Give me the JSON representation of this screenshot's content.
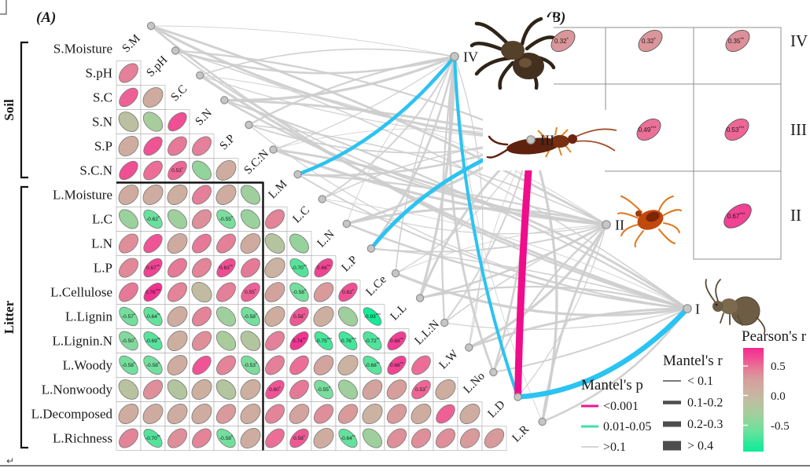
{
  "document": {
    "paragraph_mark": "↵"
  },
  "panelA_label": "(A)",
  "panelB_label": "(B)",
  "chart_data": {
    "type": "correlation-matrix-mantel-network",
    "matrix": {
      "row_labels": [
        "S.Moisture",
        "S.pH",
        "S.C",
        "S.N",
        "S.P",
        "S.C.N",
        "L.Moisture",
        "L.C",
        "L.N",
        "L.P",
        "L.Cellulose",
        "L.Lignin",
        "L.Lignin.N",
        "L.Woody",
        "L.Nonwoody",
        "L.Decomposed",
        "L.Richness"
      ],
      "diag_labels": [
        "S.M",
        "S.pH",
        "S.C",
        "S.N",
        "S.P",
        "S.C:N",
        "L.M",
        "L.C",
        "L.N",
        "L.P",
        "L.Ce",
        "L.L",
        "L.L:N",
        "L.W",
        "L.No",
        "L.D",
        "L.R"
      ],
      "group_brackets": [
        {
          "label": "Soil",
          "first_row": 0,
          "last_row": 5
        },
        {
          "label": "Litter",
          "first_row": 6,
          "last_row": 16
        }
      ],
      "values": [
        [],
        [
          0.42
        ],
        [
          0.55,
          0.12
        ],
        [
          -0.12,
          -0.3,
          0.62
        ],
        [
          0.1,
          0.6,
          0.45,
          0.42
        ],
        [
          0.62,
          0.5,
          0.53,
          -0.42,
          0.1
        ],
        [
          0.12,
          0.1,
          0.08,
          0.42,
          0.1,
          -0.35
        ],
        [
          -0.38,
          -0.62,
          -0.35,
          0.35,
          -0.55,
          -0.38,
          0.4
        ],
        [
          0.35,
          0.6,
          0.12,
          0.45,
          0.42,
          0.12,
          -0.18,
          -0.4
        ],
        [
          0.38,
          0.67,
          0.45,
          0.4,
          0.63,
          0.45,
          0.05,
          -0.7,
          0.66
        ],
        [
          0.45,
          0.76,
          0.4,
          -0.05,
          0.42,
          0.55,
          0.22,
          -0.58,
          0.3,
          0.62
        ],
        [
          -0.57,
          -0.64,
          0.1,
          0.4,
          -0.35,
          -0.58,
          0.1,
          0.58,
          0.08,
          -0.35,
          -0.93
        ],
        [
          -0.5,
          -0.69,
          0.08,
          0.35,
          -0.3,
          -0.2,
          0.42,
          0.74,
          -0.75,
          -0.76,
          -0.72,
          0.68
        ],
        [
          -0.58,
          -0.58,
          0.1,
          0.6,
          0.4,
          -0.53,
          0.42,
          0.5,
          0.2,
          0.05,
          -0.68,
          0.66,
          0.5
        ],
        [
          -0.15,
          0.35,
          -0.2,
          0.08,
          -0.2,
          0.08,
          0.6,
          0.45,
          -0.55,
          -0.35,
          0.2,
          0.25,
          0.53,
          0.1
        ],
        [
          0.1,
          0.12,
          0.1,
          0.1,
          0.3,
          0.1,
          0.4,
          0.2,
          0.35,
          0.3,
          0.05,
          0.3,
          0.1,
          0.55,
          0.1
        ],
        [
          0.4,
          -0.7,
          0.35,
          0.4,
          -0.58,
          0.1,
          0.5,
          0.58,
          0.1,
          -0.64,
          -0.35,
          0.35,
          0.35,
          0.35,
          0.3,
          0.3
        ]
      ],
      "sig_labels": [
        {
          "r": 5,
          "c": 2,
          "label": "0.53*"
        },
        {
          "r": 7,
          "c": 1,
          "label": "-0.62*"
        },
        {
          "r": 7,
          "c": 4,
          "label": "-0.55*"
        },
        {
          "r": 9,
          "c": 1,
          "label": "0.67**"
        },
        {
          "r": 9,
          "c": 4,
          "label": "0.63**"
        },
        {
          "r": 9,
          "c": 7,
          "label": "-0.70**"
        },
        {
          "r": 9,
          "c": 8,
          "label": "0.66**"
        },
        {
          "r": 10,
          "c": 1,
          "label": "0.76***"
        },
        {
          "r": 10,
          "c": 5,
          "label": "0.55*"
        },
        {
          "r": 10,
          "c": 7,
          "label": "-0.58*"
        },
        {
          "r": 10,
          "c": 9,
          "label": "0.62*"
        },
        {
          "r": 11,
          "c": 0,
          "label": "-0.57*"
        },
        {
          "r": 11,
          "c": 1,
          "label": "-0.64**"
        },
        {
          "r": 11,
          "c": 5,
          "label": "-0.58*"
        },
        {
          "r": 11,
          "c": 7,
          "label": "0.58*"
        },
        {
          "r": 11,
          "c": 10,
          "label": "-0.93***"
        },
        {
          "r": 12,
          "c": 0,
          "label": "-0.50*"
        },
        {
          "r": 12,
          "c": 1,
          "label": "-0.69**"
        },
        {
          "r": 12,
          "c": 7,
          "label": "0.74**"
        },
        {
          "r": 12,
          "c": 8,
          "label": "-0.75***"
        },
        {
          "r": 12,
          "c": 9,
          "label": "-0.76***"
        },
        {
          "r": 12,
          "c": 10,
          "label": "-0.72**"
        },
        {
          "r": 12,
          "c": 11,
          "label": "0.68**"
        },
        {
          "r": 13,
          "c": 0,
          "label": "-0.58*"
        },
        {
          "r": 13,
          "c": 1,
          "label": "-0.58*"
        },
        {
          "r": 13,
          "c": 5,
          "label": "-0.53*"
        },
        {
          "r": 13,
          "c": 10,
          "label": "-0.68**"
        },
        {
          "r": 13,
          "c": 11,
          "label": "0.66**"
        },
        {
          "r": 14,
          "c": 6,
          "label": "0.60*"
        },
        {
          "r": 14,
          "c": 8,
          "label": "-0.55*"
        },
        {
          "r": 14,
          "c": 12,
          "label": "0.53*"
        },
        {
          "r": 16,
          "c": 1,
          "label": "-0.70**"
        },
        {
          "r": 16,
          "c": 4,
          "label": "-0.58*"
        },
        {
          "r": 16,
          "c": 7,
          "label": "0.58*"
        },
        {
          "r": 16,
          "c": 9,
          "label": "-0.64**"
        }
      ]
    },
    "network": {
      "group_nodes": [
        "IV",
        "III",
        "II",
        "I"
      ],
      "group_animals": [
        {
          "group": "IV",
          "animal": "spider"
        },
        {
          "group": "III",
          "animal": "earwig"
        },
        {
          "group": "II",
          "animal": "mite"
        },
        {
          "group": "I",
          "animal": "springtail"
        }
      ],
      "colored_edges": [
        {
          "from": "IV",
          "to": "L.M",
          "color": "#2BC3F1",
          "width": 4.5,
          "mantel_p": "0.01-0.05",
          "mantel_r": "0.2-0.3"
        },
        {
          "from": "IV",
          "to": "L.D",
          "color": "#2BC3F1",
          "width": 4,
          "mantel_p": "0.01-0.05",
          "mantel_r": "0.2-0.3"
        },
        {
          "from": "III",
          "to": "L.P",
          "color": "#2BC3F1",
          "width": 5,
          "mantel_p": "0.01-0.05",
          "mantel_r": "0.2-0.3"
        },
        {
          "from": "III",
          "to": "L.D",
          "color": "#F00D8C",
          "width": 9,
          "mantel_p": "<0.001",
          "mantel_r": "> 0.4"
        },
        {
          "from": "I",
          "to": "L.D",
          "color": "#2BC3F1",
          "width": 6.5,
          "mantel_p": "0.01-0.05",
          "mantel_r": "> 0.4"
        }
      ],
      "gray_edge_color": "#cdcdcd"
    },
    "panelB": {
      "row_labels": [
        "IV",
        "III",
        "II"
      ],
      "cells": [
        {
          "row": "IV",
          "col": 1,
          "value": 0.32,
          "label": "0.32",
          "stars": "*"
        },
        {
          "row": "IV",
          "col": 2,
          "value": 0.32,
          "label": "0.32",
          "stars": "*"
        },
        {
          "row": "IV",
          "col": 3,
          "value": 0.35,
          "label": "0.35",
          "stars": "**"
        },
        {
          "row": "III",
          "col": 2,
          "value": 0.49,
          "label": "0.49",
          "stars": "***"
        },
        {
          "row": "III",
          "col": 3,
          "value": 0.53,
          "label": "0.53",
          "stars": "***"
        },
        {
          "row": "II",
          "col": 3,
          "value": 0.67,
          "label": "0.67",
          "stars": "***"
        }
      ]
    },
    "legends": {
      "mantel_p": {
        "title": "Mantel's p",
        "items": [
          {
            "label": "<0.001",
            "color": "#F0138D"
          },
          {
            "label": "0.01-0.05",
            "color": "#3EE2A3"
          },
          {
            "label": ">0.1",
            "color": "#c9c9c9"
          }
        ]
      },
      "mantel_r": {
        "title": "Mantel's r",
        "items": [
          {
            "label": "< 0.1",
            "width": 1.6
          },
          {
            "label": "0.1-0.2",
            "width": 4.5
          },
          {
            "label": "0.2-0.3",
            "width": 7
          },
          {
            "label": "> 0.4",
            "width": 12
          }
        ]
      },
      "pearson": {
        "title": "Pearson's r",
        "ticks": [
          "0.5",
          "0.0",
          "-0.5"
        ],
        "color_top": "#f20b8c",
        "color_mid": "#c8b7a2",
        "color_bottom": "#0fee97"
      }
    }
  }
}
